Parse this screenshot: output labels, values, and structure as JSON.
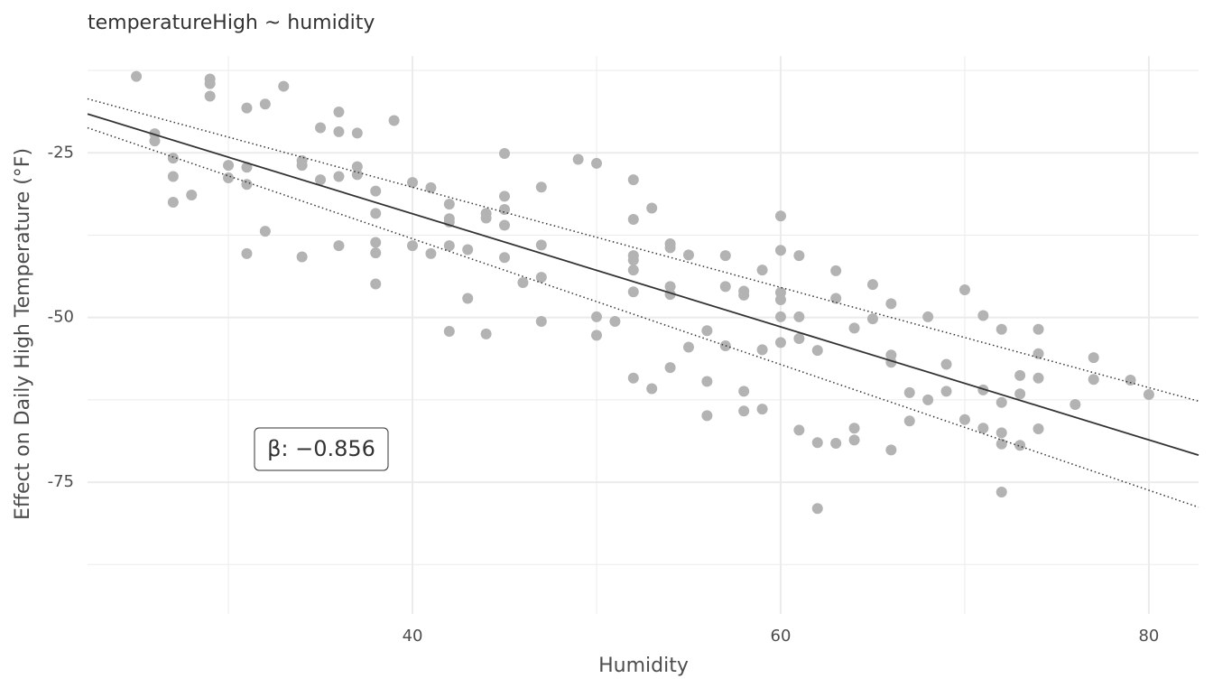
{
  "chart_data": {
    "type": "scatter",
    "title": "temperatureHigh ~ humidity",
    "x_label": "Humidity",
    "y_label": "Effect on Daily High Temperature (°F)",
    "annotation": "β: −0.856",
    "xlim": [
      22.35,
      82.7
    ],
    "ylim": [
      -95,
      -10.3
    ],
    "xticks": [
      40,
      60,
      80
    ],
    "yticks": [
      -25,
      -50,
      -75
    ],
    "x_minor_grid": [
      30,
      50,
      70
    ],
    "y_minor_grid": [
      -12.5,
      -37.5,
      -62.5,
      -87.5
    ],
    "grid": true,
    "color": "#b3b3b3",
    "x": [
      25,
      26,
      26,
      27,
      27,
      27,
      28,
      29,
      29,
      29,
      30,
      30,
      31,
      31,
      31,
      31,
      32,
      32,
      33,
      34,
      34,
      34,
      35,
      35,
      36,
      36,
      36,
      36,
      37,
      37,
      37,
      38,
      38,
      38,
      38,
      38,
      39,
      40,
      40,
      41,
      41,
      42,
      42,
      42,
      42,
      42,
      43,
      43,
      44,
      44,
      44,
      45,
      45,
      45,
      45,
      45,
      46,
      47,
      47,
      47,
      47,
      49,
      50,
      50,
      50,
      51,
      52,
      52,
      52,
      52,
      52,
      52,
      52,
      53,
      53,
      54,
      54,
      54,
      54,
      54,
      55,
      55,
      56,
      56,
      56,
      57,
      57,
      57,
      58,
      58,
      58,
      58,
      59,
      59,
      59,
      60,
      60,
      60,
      60,
      60,
      60,
      61,
      61,
      61,
      61,
      62,
      62,
      62,
      63,
      63,
      63,
      64,
      64,
      64,
      65,
      65,
      66,
      66,
      66,
      66,
      67,
      67,
      68,
      68,
      69,
      69,
      70,
      70,
      71,
      71,
      71,
      72,
      72,
      72,
      72,
      72,
      73,
      73,
      73,
      74,
      74,
      74,
      74,
      76,
      77,
      77,
      79,
      80
    ],
    "values": [
      -13.4,
      -22.1,
      -23.2,
      -25.8,
      -28.6,
      -32.5,
      -31.4,
      -13.8,
      -14.5,
      -16.4,
      -26.9,
      -28.8,
      -18.2,
      -27.2,
      -29.8,
      -40.3,
      -17.6,
      -36.9,
      -14.9,
      -26.2,
      -26.9,
      -40.8,
      -21.2,
      -29.1,
      -18.8,
      -21.8,
      -28.6,
      -39.1,
      -22.0,
      -27.1,
      -28.3,
      -30.8,
      -34.2,
      -38.6,
      -40.2,
      -44.9,
      -20.1,
      -29.5,
      -39.1,
      -30.3,
      -40.3,
      -32.8,
      -35.0,
      -35.5,
      -39.1,
      -52.1,
      -39.7,
      -47.1,
      -34.2,
      -34.9,
      -52.5,
      -25.1,
      -31.6,
      -33.6,
      -36.0,
      -40.9,
      -44.7,
      -30.2,
      -39.0,
      -43.9,
      -50.6,
      -26.0,
      -26.6,
      -49.9,
      -52.7,
      -50.6,
      -29.1,
      -35.1,
      -40.6,
      -41.3,
      -42.8,
      -46.1,
      -59.2,
      -33.4,
      -60.8,
      -38.8,
      -39.4,
      -45.3,
      -46.5,
      -57.6,
      -40.5,
      -54.5,
      -52.0,
      -59.7,
      -64.9,
      -40.6,
      -45.3,
      -54.3,
      -46.0,
      -46.6,
      -61.2,
      -64.2,
      -42.8,
      -54.9,
      -63.9,
      -34.6,
      -39.8,
      -46.2,
      -47.3,
      -49.9,
      -53.8,
      -40.6,
      -49.9,
      -53.2,
      -67.1,
      -55.0,
      -69.0,
      -79.0,
      -42.9,
      -47.1,
      -69.1,
      -51.6,
      -66.8,
      -68.6,
      -45.0,
      -50.2,
      -47.9,
      -55.7,
      -56.8,
      -70.1,
      -61.4,
      -65.7,
      -49.9,
      -62.5,
      -57.1,
      -61.2,
      -45.8,
      -65.5,
      -49.7,
      -61.0,
      -66.8,
      -51.8,
      -62.9,
      -67.5,
      -69.2,
      -76.5,
      -58.8,
      -61.6,
      -69.4,
      -51.8,
      -55.5,
      -59.2,
      -66.9,
      -63.2,
      -56.1,
      -59.4,
      -59.5,
      -61.7
    ],
    "fit": {
      "x": [
        22.35,
        82.7
      ],
      "values": [
        -19.1,
        -70.9
      ],
      "color": "#333333"
    },
    "ci_upper": {
      "x": [
        22.35,
        82.7
      ],
      "values": [
        -16.8,
        -62.7
      ],
      "color": "#333333"
    },
    "ci_lower": {
      "x": [
        22.35,
        82.7
      ],
      "values": [
        -21.2,
        -78.8
      ],
      "color": "#333333"
    }
  }
}
